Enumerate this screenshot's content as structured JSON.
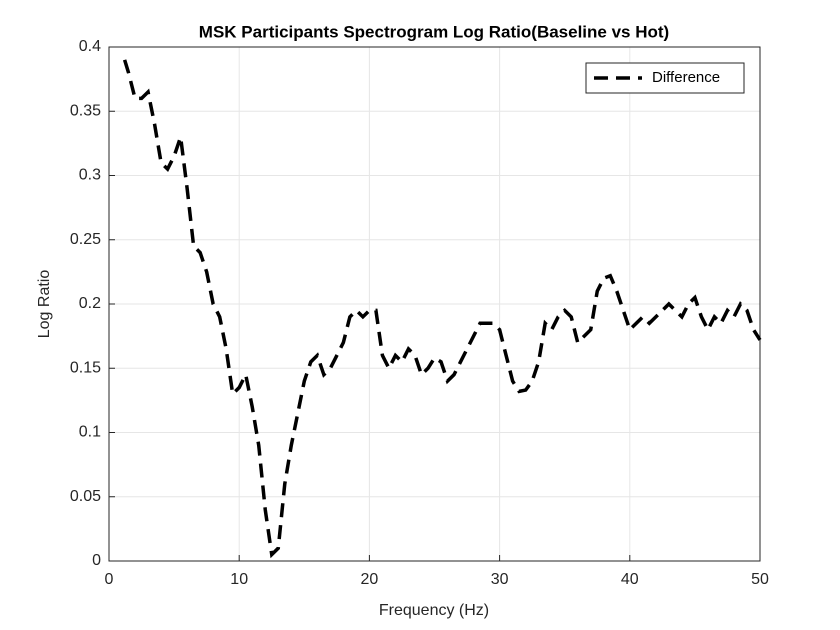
{
  "chart_data": {
    "type": "line",
    "title": "MSK Participants Spectrogram Log Ratio(Baseline vs Hot)",
    "x_label": "Frequency (Hz)",
    "y_label": "Log Ratio",
    "x": [
      1.2,
      1.5,
      2,
      2.5,
      3,
      3.5,
      4,
      4.5,
      5,
      5.5,
      6,
      6.5,
      7,
      7.5,
      8,
      8.5,
      9,
      9.5,
      10,
      10.5,
      11,
      11.5,
      12,
      12.5,
      13,
      13.5,
      14,
      14.5,
      15,
      15.5,
      16,
      16.5,
      17,
      17.5,
      18,
      18.5,
      19,
      19.5,
      20,
      20.5,
      21,
      21.5,
      22,
      22.5,
      23,
      23.5,
      24,
      24.5,
      25,
      25.5,
      26,
      26.5,
      27,
      27.5,
      28,
      28.5,
      29,
      29.5,
      30,
      30.5,
      31,
      31.5,
      32,
      32.5,
      33,
      33.5,
      34,
      34.5,
      35,
      35.5,
      36,
      36.5,
      37,
      37.5,
      38,
      38.5,
      39,
      39.5,
      40,
      40.5,
      41,
      41.5,
      42,
      42.5,
      43,
      43.5,
      44,
      44.5,
      45,
      45.5,
      46,
      46.5,
      47,
      47.5,
      48,
      48.5,
      49,
      49.5,
      50
    ],
    "series": [
      {
        "name": "Difference",
        "color": "#000000",
        "values": [
          0.39,
          0.38,
          0.36,
          0.36,
          0.365,
          0.34,
          0.31,
          0.305,
          0.315,
          0.33,
          0.29,
          0.245,
          0.24,
          0.225,
          0.2,
          0.19,
          0.165,
          0.13,
          0.135,
          0.145,
          0.12,
          0.09,
          0.04,
          0.005,
          0.01,
          0.06,
          0.09,
          0.115,
          0.14,
          0.155,
          0.16,
          0.145,
          0.15,
          0.16,
          0.17,
          0.19,
          0.195,
          0.19,
          0.195,
          0.195,
          0.16,
          0.15,
          0.16,
          0.155,
          0.165,
          0.16,
          0.145,
          0.15,
          0.158,
          0.155,
          0.14,
          0.145,
          0.155,
          0.165,
          0.175,
          0.185,
          0.185,
          0.185,
          0.18,
          0.16,
          0.14,
          0.132,
          0.133,
          0.14,
          0.155,
          0.185,
          0.18,
          0.19,
          0.195,
          0.19,
          0.17,
          0.175,
          0.18,
          0.21,
          0.22,
          0.222,
          0.21,
          0.195,
          0.18,
          0.185,
          0.19,
          0.185,
          0.19,
          0.195,
          0.2,
          0.195,
          0.19,
          0.2,
          0.205,
          0.19,
          0.18,
          0.19,
          0.185,
          0.195,
          0.19,
          0.2,
          0.195,
          0.18,
          0.172
        ]
      }
    ],
    "xlim": [
      0,
      50
    ],
    "xticks": [
      0,
      10,
      20,
      30,
      40,
      50
    ],
    "ylim": [
      0,
      0.4
    ],
    "yticks": [
      0,
      0.05,
      0.1,
      0.15,
      0.2,
      0.25,
      0.3,
      0.35,
      0.4
    ],
    "grid": true,
    "legend": "northeast"
  }
}
